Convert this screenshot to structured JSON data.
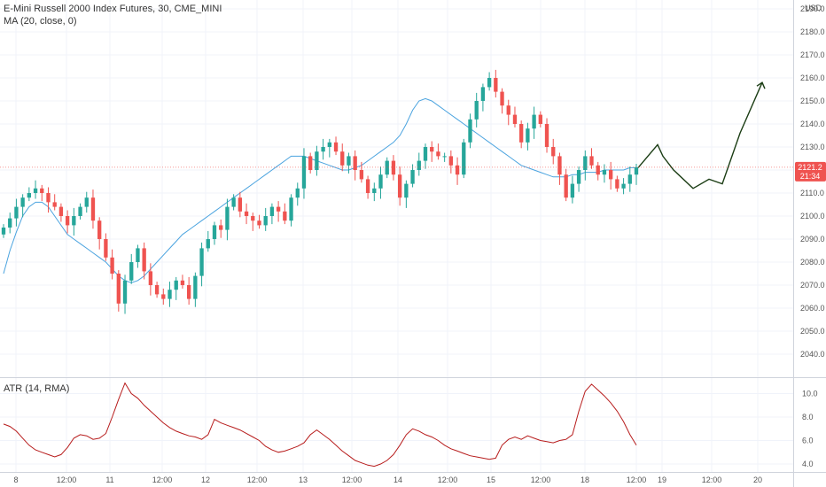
{
  "legend": {
    "main": "E-Mini Russell 2000 Index Futures, 30, CME_MINI",
    "ma": "MA (20, close, 0)",
    "atr": "ATR (14, RMA)"
  },
  "price_axis": {
    "currency": "USD",
    "ticks": [
      "2040.0",
      "2050.0",
      "2060.0",
      "2070.0",
      "2080.0",
      "2090.0",
      "2100.0",
      "2110.0",
      "2120.0",
      "2130.0",
      "2140.0",
      "2150.0",
      "2160.0",
      "2170.0",
      "2180.0",
      "2190.0"
    ]
  },
  "atr_axis": {
    "ticks": [
      "4.0",
      "6.0",
      "8.0",
      "10.0"
    ]
  },
  "time_axis": {
    "labels": [
      "8",
      "12:00",
      "11",
      "12:00",
      "12",
      "12:00",
      "13",
      "12:00",
      "14",
      "12:00",
      "15",
      "12:00",
      "18",
      "12:00",
      "19",
      "12:00",
      "20"
    ]
  },
  "last_price": {
    "value": "2121.2",
    "countdown": "21:34"
  },
  "colors": {
    "up": "#26a69a",
    "down": "#ef5350",
    "ma": "#4aa3df",
    "atr": "#b71c1c",
    "projection": "#1b3d14",
    "last_tag": "#ef5350",
    "grid": "#f0f3fa"
  },
  "chart_data": {
    "type": "candlestick",
    "symbol": "E-Mini Russell 2000 Index Futures",
    "interval": "30",
    "ylim": [
      2035,
      2195
    ],
    "close_series": [
      2095,
      2099,
      2104,
      2108,
      2110,
      2112,
      2110,
      2106,
      2104,
      2100,
      2096,
      2100,
      2104,
      2108,
      2098,
      2090,
      2082,
      2075,
      2062,
      2072,
      2080,
      2086,
      2076,
      2070,
      2066,
      2064,
      2068,
      2072,
      2070,
      2064,
      2074,
      2086,
      2090,
      2096,
      2094,
      2104,
      2108,
      2102,
      2100,
      2098,
      2096,
      2100,
      2104,
      2102,
      2098,
      2108,
      2112,
      2126,
      2120,
      2128,
      2130,
      2132,
      2128,
      2122,
      2126,
      2120,
      2116,
      2110,
      2112,
      2118,
      2124,
      2118,
      2108,
      2114,
      2120,
      2124,
      2130,
      2128,
      2126,
      2126,
      2122,
      2118,
      2132,
      2142,
      2150,
      2156,
      2160,
      2154,
      2148,
      2144,
      2140,
      2132,
      2138,
      2144,
      2140,
      2130,
      2126,
      2118,
      2108,
      2114,
      2120,
      2126,
      2122,
      2118,
      2120,
      2116,
      2112,
      2114,
      2118,
      2121.2
    ],
    "ma_series": [
      2075,
      2085,
      2093,
      2100,
      2104,
      2106,
      2106,
      2104,
      2100,
      2096,
      2092,
      2090,
      2088,
      2086,
      2084,
      2082,
      2080,
      2077,
      2074,
      2072,
      2071,
      2072,
      2074,
      2077,
      2080,
      2083,
      2086,
      2089,
      2092,
      2094,
      2096,
      2098,
      2100,
      2102,
      2104,
      2106,
      2108,
      2110,
      2112,
      2114,
      2116,
      2118,
      2120,
      2122,
      2124,
      2126,
      2126,
      2126,
      2125,
      2124,
      2123,
      2122,
      2121,
      2120,
      2120,
      2121,
      2122,
      2124,
      2126,
      2128,
      2130,
      2132,
      2135,
      2140,
      2146,
      2150,
      2151,
      2150,
      2148,
      2146,
      2144,
      2142,
      2140,
      2138,
      2136,
      2134,
      2132,
      2130,
      2128,
      2126,
      2124,
      2122,
      2121,
      2120,
      2119,
      2118,
      2117,
      2117,
      2117,
      2118,
      2118,
      2119,
      2119,
      2119,
      2120,
      2120,
      2120,
      2120,
      2121,
      2121
    ],
    "atr_series": [
      7.4,
      7.2,
      6.8,
      6.2,
      5.6,
      5.2,
      5.0,
      4.8,
      4.6,
      4.8,
      5.4,
      6.2,
      6.5,
      6.4,
      6.1,
      6.2,
      6.6,
      8.0,
      9.5,
      10.9,
      10.0,
      9.6,
      9.0,
      8.5,
      8.0,
      7.5,
      7.1,
      6.8,
      6.6,
      6.4,
      6.3,
      6.1,
      6.5,
      7.8,
      7.5,
      7.3,
      7.1,
      6.9,
      6.6,
      6.3,
      6.0,
      5.5,
      5.2,
      5.0,
      5.1,
      5.3,
      5.5,
      5.8,
      6.5,
      6.9,
      6.5,
      6.1,
      5.6,
      5.1,
      4.7,
      4.3,
      4.1,
      3.9,
      3.8,
      4.0,
      4.3,
      4.8,
      5.6,
      6.5,
      7.0,
      6.8,
      6.5,
      6.3,
      6.0,
      5.6,
      5.3,
      5.1,
      4.9,
      4.7,
      4.6,
      4.5,
      4.4,
      4.5,
      5.6,
      6.1,
      6.3,
      6.1,
      6.4,
      6.2,
      6.0,
      5.9,
      5.8,
      6.0,
      6.1,
      6.5,
      8.5,
      10.2,
      10.8,
      10.3,
      9.8,
      9.2,
      8.5,
      7.6,
      6.5,
      5.6
    ],
    "projection": [
      2121,
      2131,
      2126,
      2120,
      2112,
      2116,
      2114,
      2136,
      2158
    ],
    "atr_ylim": [
      3.0,
      11.5
    ],
    "atr_ticks": [
      4.0,
      6.0,
      8.0,
      10.0
    ]
  }
}
